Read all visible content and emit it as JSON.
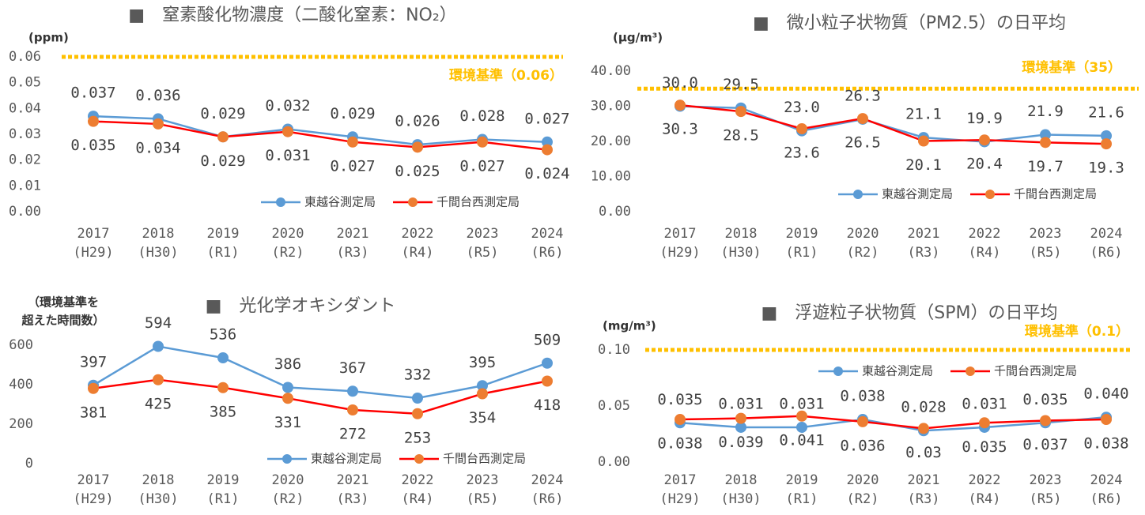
{
  "chart_data": [
    {
      "type": "line",
      "title": "■　窒素酸化物濃度（二酸化窒素：NO₂）",
      "y_label": "(ppm)",
      "categories": [
        [
          "2017",
          "(H29)"
        ],
        [
          "2018",
          "(H30)"
        ],
        [
          "2019",
          "(R1)"
        ],
        [
          "2020",
          "(R2)"
        ],
        [
          "2021",
          "(R3)"
        ],
        [
          "2022",
          "(R4)"
        ],
        [
          "2023",
          "(R5)"
        ],
        [
          "2024",
          "(R6)"
        ]
      ],
      "series": [
        {
          "name": "東越谷測定局",
          "color": "#5b9bd5",
          "marker_color": "#5b9bd5",
          "label_side": "above",
          "values": [
            0.037,
            0.036,
            0.029,
            0.032,
            0.029,
            0.026,
            0.028,
            0.027
          ]
        },
        {
          "name": "千間台西測定局",
          "color": "#ff0000",
          "marker_color": "#ed7d31",
          "label_side": "below",
          "values": [
            0.035,
            0.034,
            0.029,
            0.031,
            0.027,
            0.025,
            0.027,
            0.024
          ]
        }
      ],
      "ylim": [
        0,
        0.06
      ],
      "yticks": [
        {
          "value": 0,
          "label": "0.00"
        },
        {
          "value": 0.01,
          "label": "0.01"
        },
        {
          "value": 0.02,
          "label": "0.02"
        },
        {
          "value": 0.03,
          "label": "0.03"
        },
        {
          "value": 0.04,
          "label": "0.04"
        },
        {
          "value": 0.05,
          "label": "0.05"
        },
        {
          "value": 0.06,
          "label": "0.06"
        }
      ],
      "reference": {
        "value": 0.06,
        "label": "環境基準（0.06）",
        "color": "#ffc000"
      },
      "grid": false,
      "legend": "lower right"
    },
    {
      "type": "line",
      "title": "■　微小粒子状物質（PM2.5）の日平均",
      "y_label": "(μg/m³)",
      "categories": [
        [
          "2017",
          "(H29)"
        ],
        [
          "2018",
          "(H30)"
        ],
        [
          "2019",
          "(R1)"
        ],
        [
          "2020",
          "(R2)"
        ],
        [
          "2021",
          "(R3)"
        ],
        [
          "2022",
          "(R4)"
        ],
        [
          "2023",
          "(R5)"
        ],
        [
          "2024",
          "(R6)"
        ]
      ],
      "series": [
        {
          "name": "東越谷測定局",
          "color": "#5b9bd5",
          "marker_color": "#5b9bd5",
          "label_side": "above",
          "values": [
            30.0,
            29.5,
            23.0,
            26.3,
            21.1,
            19.9,
            21.9,
            21.6
          ],
          "value_labels": [
            "30.0",
            "29.5",
            "23.0",
            "26.3",
            "21.1",
            "19.9",
            "21.9",
            "21.6"
          ]
        },
        {
          "name": "千間台西測定局",
          "color": "#ff0000",
          "marker_color": "#ed7d31",
          "label_side": "below",
          "values": [
            30.3,
            28.5,
            23.6,
            26.5,
            20.1,
            20.4,
            19.7,
            19.3
          ],
          "value_labels": [
            "30.3",
            "28.5",
            "23.6",
            "26.5",
            "20.1",
            "20.4",
            "19.7",
            "19.3"
          ]
        }
      ],
      "ylim": [
        0,
        40
      ],
      "yticks": [
        {
          "value": 0,
          "label": "0.00"
        },
        {
          "value": 10,
          "label": "10.00"
        },
        {
          "value": 20,
          "label": "20.00"
        },
        {
          "value": 30,
          "label": "30.00"
        },
        {
          "value": 40,
          "label": "40.00"
        }
      ],
      "reference": {
        "value": 35,
        "label": "環境基準（35）",
        "color": "#ffc000"
      },
      "grid": false,
      "legend": "lower right"
    },
    {
      "type": "line",
      "title": "■　光化学オキシダント",
      "y_label": [
        "（環境基準を",
        "超えた時間数）"
      ],
      "categories": [
        [
          "2017",
          "(H29)"
        ],
        [
          "2018",
          "(H30)"
        ],
        [
          "2019",
          "(R1)"
        ],
        [
          "2020",
          "(R2)"
        ],
        [
          "2021",
          "(R3)"
        ],
        [
          "2022",
          "(R4)"
        ],
        [
          "2023",
          "(R5)"
        ],
        [
          "2024",
          "(R6)"
        ]
      ],
      "series": [
        {
          "name": "東越谷測定局",
          "color": "#5b9bd5",
          "marker_color": "#5b9bd5",
          "label_side": "above",
          "values": [
            397,
            594,
            536,
            386,
            367,
            332,
            395,
            509
          ]
        },
        {
          "name": "千間台西測定局",
          "color": "#ff0000",
          "marker_color": "#ed7d31",
          "label_side": "below",
          "values": [
            381,
            425,
            385,
            331,
            272,
            253,
            354,
            418
          ]
        }
      ],
      "ylim": [
        0,
        600
      ],
      "yticks": [
        0,
        200,
        400,
        600
      ],
      "grid": false,
      "legend": "lower right"
    },
    {
      "type": "line",
      "title": "■　浮遊粒子状物質（SPM）の日平均",
      "y_label": "(mg/m³)",
      "categories": [
        [
          "2017",
          "(H29)"
        ],
        [
          "2018",
          "(H30)"
        ],
        [
          "2019",
          "(R1)"
        ],
        [
          "2020",
          "(R2)"
        ],
        [
          "2021",
          "(R3)"
        ],
        [
          "2022",
          "(R4)"
        ],
        [
          "2023",
          "(R5)"
        ],
        [
          "2024",
          "(R6)"
        ]
      ],
      "series": [
        {
          "name": "東越谷測定局",
          "color": "#5b9bd5",
          "marker_color": "#5b9bd5",
          "label_side": "above",
          "values": [
            0.035,
            0.031,
            0.031,
            0.038,
            0.028,
            0.031,
            0.035,
            0.04
          ],
          "value_labels": [
            "0.035",
            "0.031",
            "0.031",
            "0.038",
            "0.028",
            "0.031",
            "0.035",
            "0.040"
          ]
        },
        {
          "name": "千間台西測定局",
          "color": "#ff0000",
          "marker_color": "#ed7d31",
          "label_side": "below",
          "values": [
            0.038,
            0.039,
            0.041,
            0.036,
            0.03,
            0.035,
            0.037,
            0.038
          ]
        }
      ],
      "ylim": [
        0,
        0.1
      ],
      "yticks": [
        {
          "value": 0,
          "label": "0.00"
        },
        {
          "value": 0.05,
          "label": "0.05"
        },
        {
          "value": 0.1,
          "label": "0.10"
        }
      ],
      "reference": {
        "value": 0.1,
        "label": "環境基準（0.1）",
        "color": "#ffc000"
      },
      "grid": false,
      "legend": "upper right"
    }
  ]
}
